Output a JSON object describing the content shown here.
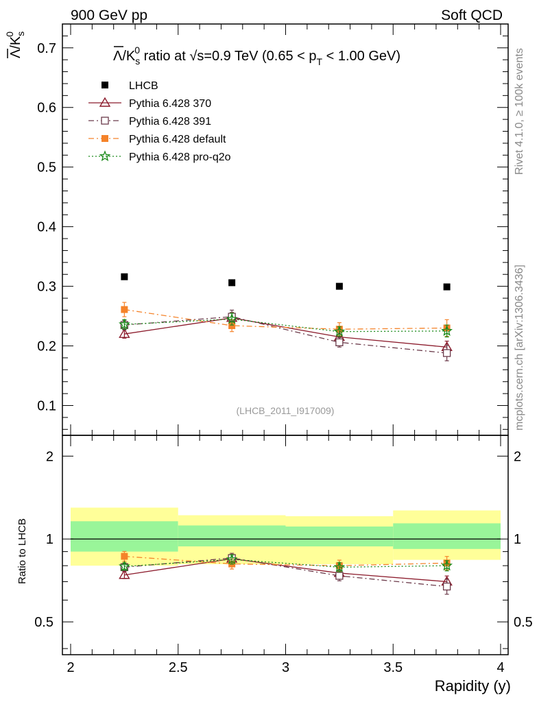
{
  "header": {
    "left": "900 GeV pp",
    "right": "Soft QCD"
  },
  "side_labels": {
    "rivet": "Rivet 4.1.0, ≥ 100k events",
    "mcplots": "mcplots.cern.ch [arXiv:1306.3436]"
  },
  "chart_data": [
    {
      "type": "scatter",
      "panel": "main",
      "title": "Λ̄/K⁰s ratio at √s=0.9 TeV (0.65 < pT < 1.00 GeV)",
      "title_parts": {
        "pre": "Λ",
        "mid": "/K",
        "sup": "0",
        "sub": "s",
        "ratio": " ratio at ",
        "sqrt": "√",
        "s": "s",
        "energy": "=0.9 TeV (0.65 < p",
        "pt_sub": "T",
        "range_end": " < 1.00 GeV)"
      },
      "ylabel": "Λ̄/K⁰s",
      "ylabel_parts": {
        "a": "Λ",
        "b": "/K",
        "sup": "0",
        "sub": "s"
      },
      "xlabel": "Rapidity (y)",
      "xlim": [
        2,
        4
      ],
      "ylim": [
        0.05,
        0.74
      ],
      "y_ticks": [
        0.1,
        0.2,
        0.3,
        0.4,
        0.5,
        0.6,
        0.7
      ],
      "y_tick_labels": [
        "0.1",
        "0.2",
        "0.3",
        "0.4",
        "0.5",
        "0.6",
        "0.7"
      ],
      "x": [
        2.25,
        2.75,
        3.25,
        3.75
      ],
      "series": [
        {
          "name": "LHCB",
          "color": "#000000",
          "marker": "square-filled",
          "line": "none",
          "values": [
            0.316,
            0.306,
            0.3,
            0.299
          ],
          "err": [
            0.0,
            0.0,
            0.0,
            0.0
          ]
        },
        {
          "name": "Pythia 6.428 370",
          "color": "#8b1a2b",
          "marker": "triangle-open",
          "line": "solid",
          "values": [
            0.22,
            0.247,
            0.215,
            0.198
          ],
          "err": [
            0.007,
            0.009,
            0.008,
            0.01
          ]
        },
        {
          "name": "Pythia 6.428 391",
          "color": "#6b3a4a",
          "marker": "square-open",
          "line": "dashdot",
          "values": [
            0.235,
            0.249,
            0.206,
            0.188
          ],
          "err": [
            0.008,
            0.011,
            0.008,
            0.013
          ]
        },
        {
          "name": "Pythia 6.428 default",
          "color": "#f5832a",
          "marker": "square-filled",
          "line": "dashdot",
          "values": [
            0.261,
            0.234,
            0.228,
            0.23
          ],
          "err": [
            0.012,
            0.01,
            0.011,
            0.014
          ]
        },
        {
          "name": "Pythia 6.428 pro-q2o",
          "color": "#1a8a1a",
          "marker": "star-open",
          "line": "dotted",
          "values": [
            0.236,
            0.245,
            0.224,
            0.225
          ],
          "err": [
            0.008,
            0.01,
            0.008,
            0.01
          ]
        }
      ],
      "annotation": "(LHCB_2011_I917009)"
    },
    {
      "type": "scatter",
      "panel": "ratio",
      "ylabel": "Ratio to LHCB",
      "xlabel": "Rapidity (y)",
      "xlim": [
        2,
        4
      ],
      "ylim": [
        0.38,
        2.38
      ],
      "y_ticks": [
        0.5,
        1,
        2
      ],
      "y_tick_labels": [
        "0.5",
        "1",
        "2"
      ],
      "x_ticks": [
        2,
        2.5,
        3,
        3.5,
        4
      ],
      "x_tick_labels": [
        "2",
        "2.5",
        "3",
        "3.5",
        "4"
      ],
      "reference_line": 1,
      "bands": {
        "bins": [
          [
            2.0,
            2.5
          ],
          [
            2.5,
            3.0
          ],
          [
            3.0,
            3.5
          ],
          [
            3.5,
            4.0
          ]
        ],
        "yellow": [
          [
            0.8,
            1.3
          ],
          [
            0.81,
            1.22
          ],
          [
            0.81,
            1.21
          ],
          [
            0.84,
            1.27
          ]
        ],
        "green": [
          [
            0.9,
            1.16
          ],
          [
            0.94,
            1.12
          ],
          [
            0.94,
            1.11
          ],
          [
            0.92,
            1.14
          ]
        ],
        "yellow_color": "#ffff99",
        "green_color": "#99f599"
      },
      "x": [
        2.25,
        2.75,
        3.25,
        3.75
      ],
      "series": [
        {
          "name": "Pythia 6.428 370",
          "color": "#8b1a2b",
          "marker": "triangle-open",
          "line": "solid",
          "values": [
            0.74,
            0.848,
            0.752,
            0.7
          ],
          "err": [
            0.022,
            0.028,
            0.028,
            0.034
          ]
        },
        {
          "name": "Pythia 6.428 391",
          "color": "#6b3a4a",
          "marker": "square-open",
          "line": "dashdot",
          "values": [
            0.79,
            0.853,
            0.735,
            0.672
          ],
          "err": [
            0.024,
            0.034,
            0.03,
            0.042
          ]
        },
        {
          "name": "Pythia 6.428 default",
          "color": "#f5832a",
          "marker": "square-filled",
          "line": "dashdot",
          "values": [
            0.865,
            0.812,
            0.8,
            0.818
          ],
          "err": [
            0.036,
            0.034,
            0.038,
            0.046
          ]
        },
        {
          "name": "Pythia 6.428 pro-q2o",
          "color": "#1a8a1a",
          "marker": "star-open",
          "line": "dotted",
          "values": [
            0.795,
            0.843,
            0.79,
            0.8
          ],
          "err": [
            0.024,
            0.032,
            0.03,
            0.034
          ]
        }
      ]
    }
  ]
}
